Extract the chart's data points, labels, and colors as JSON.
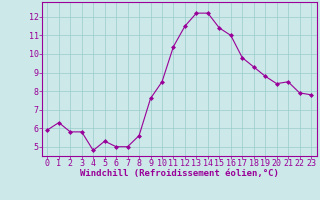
{
  "x": [
    0,
    1,
    2,
    3,
    4,
    5,
    6,
    7,
    8,
    9,
    10,
    11,
    12,
    13,
    14,
    15,
    16,
    17,
    18,
    19,
    20,
    21,
    22,
    23
  ],
  "y": [
    5.9,
    6.3,
    5.8,
    5.8,
    4.8,
    5.3,
    5.0,
    5.0,
    5.6,
    7.6,
    8.5,
    10.4,
    11.5,
    12.2,
    12.2,
    11.4,
    11.0,
    9.8,
    9.3,
    8.8,
    8.4,
    8.5,
    7.9,
    7.8
  ],
  "line_color": "#990099",
  "marker": "D",
  "marker_size": 2,
  "bg_color": "#cce8e8",
  "grid_color": "#99cccc",
  "xlabel": "Windchill (Refroidissement éolien,°C)",
  "xlabel_color": "#990099",
  "xlabel_fontsize": 6.5,
  "tick_color": "#990099",
  "tick_fontsize": 6,
  "ylim": [
    4.5,
    12.8
  ],
  "xlim": [
    -0.5,
    23.5
  ],
  "yticks": [
    5,
    6,
    7,
    8,
    9,
    10,
    11,
    12
  ],
  "xticks": [
    0,
    1,
    2,
    3,
    4,
    5,
    6,
    7,
    8,
    9,
    10,
    11,
    12,
    13,
    14,
    15,
    16,
    17,
    18,
    19,
    20,
    21,
    22,
    23
  ],
  "spine_color": "#990099"
}
